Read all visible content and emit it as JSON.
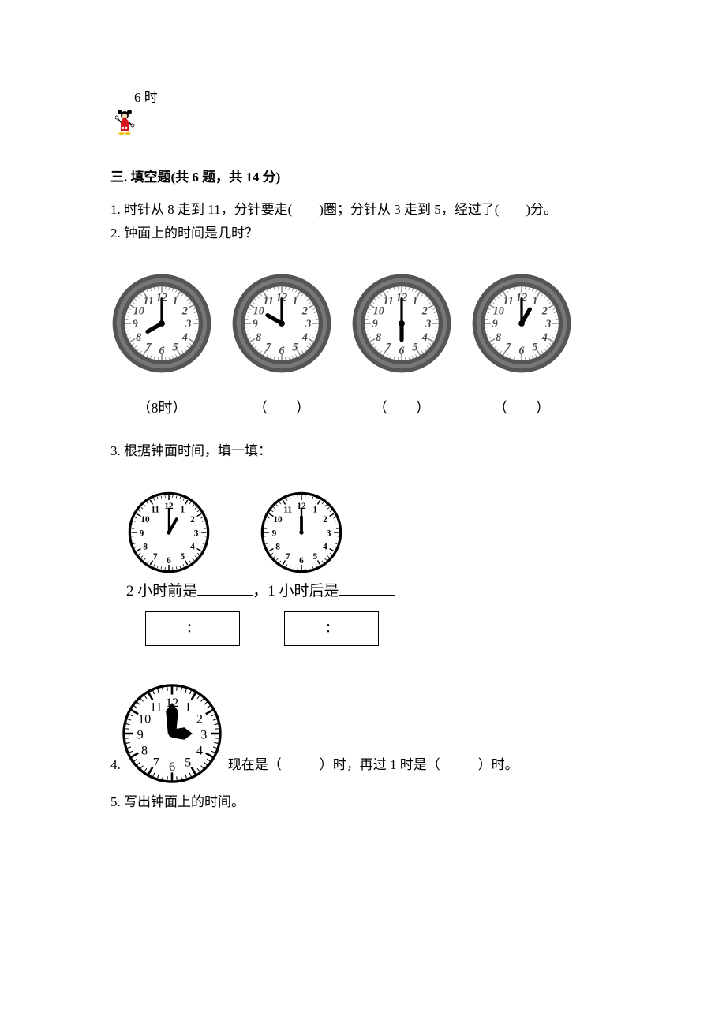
{
  "top_label": "6 时",
  "section3": {
    "title": "三. 填空题(共 6 题，共 14 分)",
    "q1": "1. 时针从 8 走到 11，分针要走(　　)圈；分针从 3 走到 5，经过了(　　)分。",
    "q2": {
      "prompt": "2. 钟面上的时间是几时？",
      "clocks": [
        {
          "hour": 8,
          "minute": 0,
          "label": "（8时）",
          "style": "fancy"
        },
        {
          "hour": 10,
          "minute": 0,
          "label": "（　　）",
          "style": "fancy"
        },
        {
          "hour": 6,
          "minute": 0,
          "label": "（　　）",
          "style": "fancy"
        },
        {
          "hour": 1,
          "minute": 0,
          "label": "（　　）",
          "style": "fancy"
        }
      ],
      "clock_size": 130,
      "frame_color": "#555555",
      "face_color": "#ffffff",
      "number_color": "#4a4a4a",
      "hand_color": "#000000"
    },
    "q3": {
      "prompt": "3. 根据钟面时间，填一填：",
      "clocks": [
        {
          "hour": 1,
          "minute": 0,
          "style": "simple"
        },
        {
          "hour": 12,
          "minute": 0,
          "style": "simple"
        }
      ],
      "clock_size": 108,
      "line_parts": [
        "2 小时前是",
        "，1 小时后是"
      ],
      "box_text": "："
    },
    "q4": {
      "prefix": "4.",
      "clock": {
        "hour": 3,
        "minute": 0,
        "style": "bold"
      },
      "clock_size": 130,
      "text_parts": [
        "现在是（",
        "）时，再过 1 时是（",
        "）时。"
      ]
    },
    "q5": "5. 写出钟面上的时间。"
  },
  "colors": {
    "text": "#000000",
    "bg": "#ffffff"
  }
}
